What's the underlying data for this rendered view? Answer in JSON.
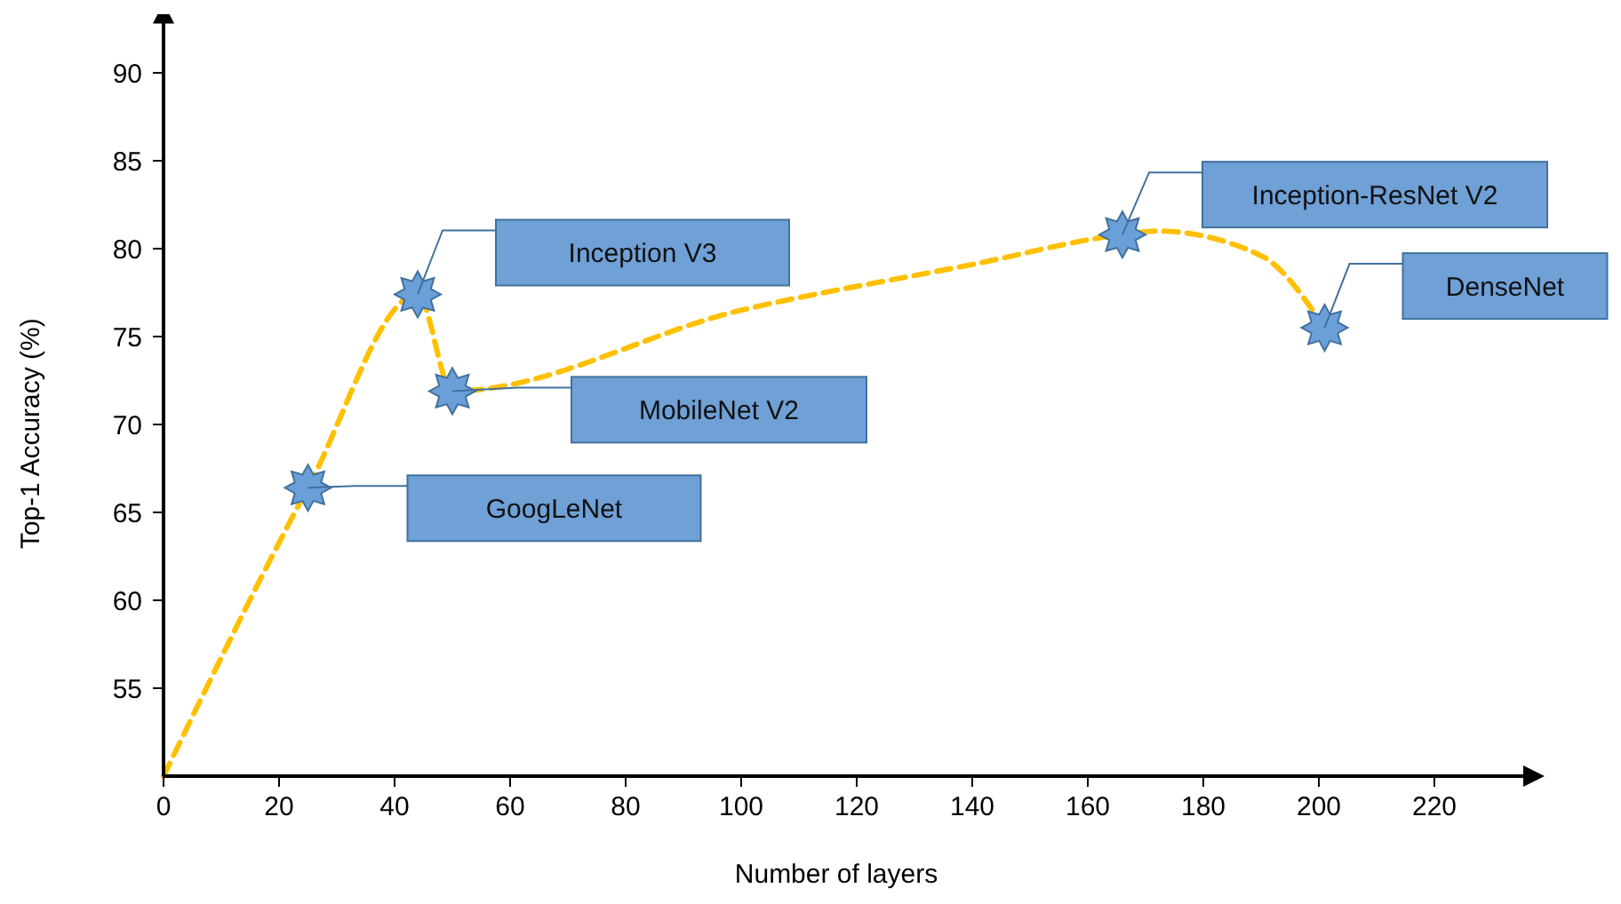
{
  "chart_data": {
    "type": "line",
    "xlabel": "Number of layers",
    "ylabel": "Top-1 Accuracy (%)",
    "xlim": [
      0,
      236
    ],
    "ylim": [
      50,
      93
    ],
    "xticks": [
      0,
      20,
      40,
      60,
      80,
      100,
      120,
      140,
      160,
      180,
      200,
      220
    ],
    "yticks": [
      55,
      60,
      65,
      70,
      75,
      80,
      85,
      90
    ],
    "grid": false,
    "series": [
      {
        "color": "#ffc000",
        "line_style": "dashed",
        "marker": "none",
        "x": [
          0,
          25,
          44,
          50,
          100,
          140,
          166,
          172,
          190,
          201
        ],
        "values": [
          50,
          66.4,
          77.4,
          71.9,
          76.5,
          79.1,
          80.8,
          81,
          79.6,
          75.5
        ]
      },
      {
        "type": "scatter",
        "color": "#6a9fd8",
        "marker": "star",
        "x": [
          25,
          44,
          50,
          166,
          201
        ],
        "values": [
          66.4,
          77.4,
          71.9,
          80.8,
          75.5
        ]
      }
    ],
    "annotations": [
      "GoogLeNet",
      "Inception V3",
      "MobileNet V2",
      "Inception-ResNet V2",
      "DenseNet"
    ]
  }
}
